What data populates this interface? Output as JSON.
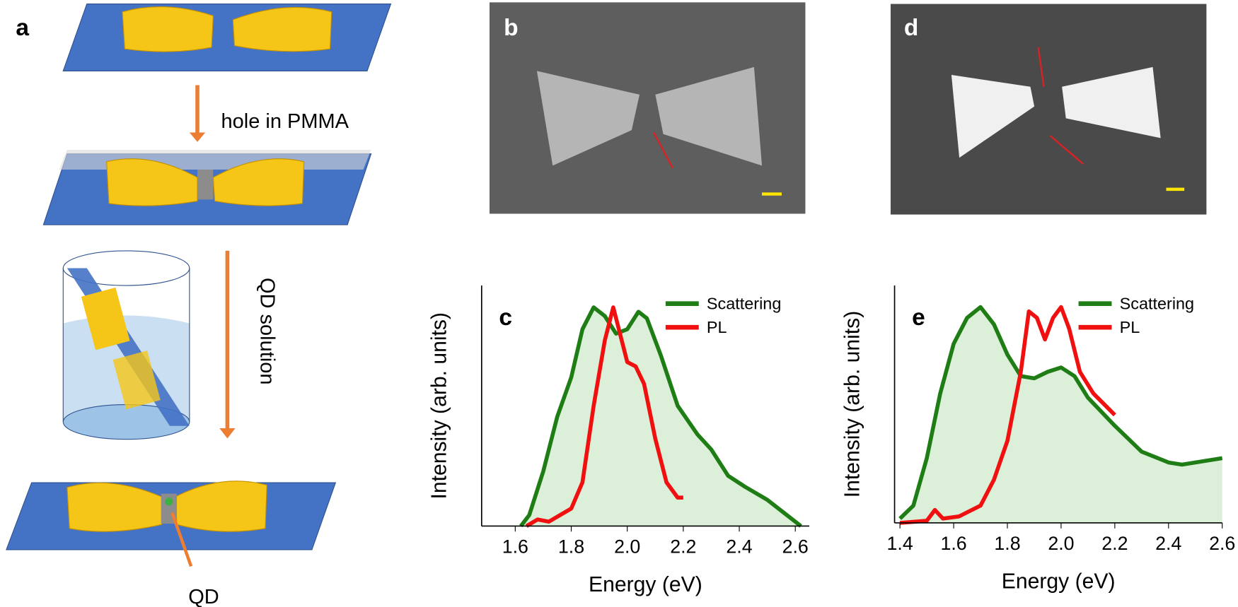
{
  "panel_labels": [
    "a",
    "b",
    "d"
  ],
  "schematic": {
    "step1": "hole in PMMA",
    "step2": "QD solution",
    "qd": "QD"
  },
  "chart_data": [
    {
      "type": "line",
      "panel": "c",
      "xlabel": "Energy (eV)",
      "ylabel": "Intensity (arb. units)",
      "xlim": [
        1.48,
        2.65
      ],
      "ylim": [
        0,
        1.1
      ],
      "xticks": [
        1.6,
        1.8,
        {
          "value": 2,
          "label": "2.0"
        },
        2.2,
        2.4,
        2.6
      ],
      "series": [
        {
          "name": "Scattering",
          "color": "#1e7d14",
          "area": true,
          "area_color": "#dcefd8",
          "x": [
            1.62,
            1.65,
            1.7,
            1.75,
            1.8,
            1.84,
            1.88,
            1.92,
            1.96,
            2.0,
            2.04,
            2.07,
            2.12,
            2.18,
            2.25,
            2.3,
            2.36,
            2.42,
            2.5,
            2.56,
            2.62
          ],
          "values": [
            0,
            0.05,
            0.25,
            0.5,
            0.68,
            0.9,
            1.0,
            0.96,
            0.88,
            0.9,
            0.98,
            0.95,
            0.78,
            0.55,
            0.42,
            0.35,
            0.23,
            0.18,
            0.12,
            0.06,
            0
          ]
        },
        {
          "name": "PL",
          "color": "#f01010",
          "area": false,
          "x": [
            1.64,
            1.68,
            1.72,
            1.76,
            1.8,
            1.84,
            1.88,
            1.92,
            1.95,
            1.98,
            2.0,
            2.03,
            2.06,
            2.1,
            2.14,
            2.18,
            2.2
          ],
          "values": [
            0,
            0.03,
            0.02,
            0.05,
            0.08,
            0.2,
            0.55,
            0.85,
            1.0,
            0.85,
            0.75,
            0.73,
            0.65,
            0.4,
            0.2,
            0.13,
            0.13
          ]
        }
      ]
    },
    {
      "type": "line",
      "panel": "e",
      "xlabel": "Energy (eV)",
      "ylabel": "Intensity (arb. units)",
      "xlim": [
        1.38,
        2.6
      ],
      "ylim": [
        0,
        1.1
      ],
      "xticks": [
        1.4,
        1.6,
        1.8,
        {
          "value": 2,
          "label": "2.0"
        },
        2.2,
        2.4,
        2.6
      ],
      "series": [
        {
          "name": "Scattering",
          "color": "#1e7d14",
          "area": true,
          "area_color": "#dcefd8",
          "x": [
            1.4,
            1.45,
            1.5,
            1.55,
            1.6,
            1.65,
            1.7,
            1.75,
            1.8,
            1.85,
            1.9,
            1.95,
            2.0,
            2.05,
            2.1,
            2.2,
            2.3,
            2.4,
            2.45,
            2.6
          ],
          "values": [
            0.02,
            0.08,
            0.3,
            0.6,
            0.83,
            0.95,
            1.0,
            0.92,
            0.78,
            0.68,
            0.67,
            0.7,
            0.72,
            0.68,
            0.58,
            0.45,
            0.33,
            0.28,
            0.27,
            0.3
          ]
        },
        {
          "name": "PL",
          "color": "#f01010",
          "area": false,
          "x": [
            1.4,
            1.5,
            1.53,
            1.56,
            1.62,
            1.7,
            1.75,
            1.8,
            1.85,
            1.88,
            1.91,
            1.94,
            1.97,
            2.0,
            2.03,
            2.07,
            2.12,
            2.2
          ],
          "values": [
            0,
            0.01,
            0.06,
            0.02,
            0.03,
            0.08,
            0.2,
            0.38,
            0.7,
            0.98,
            0.95,
            0.85,
            0.95,
            1.0,
            0.9,
            0.7,
            0.6,
            0.5
          ]
        }
      ]
    }
  ]
}
